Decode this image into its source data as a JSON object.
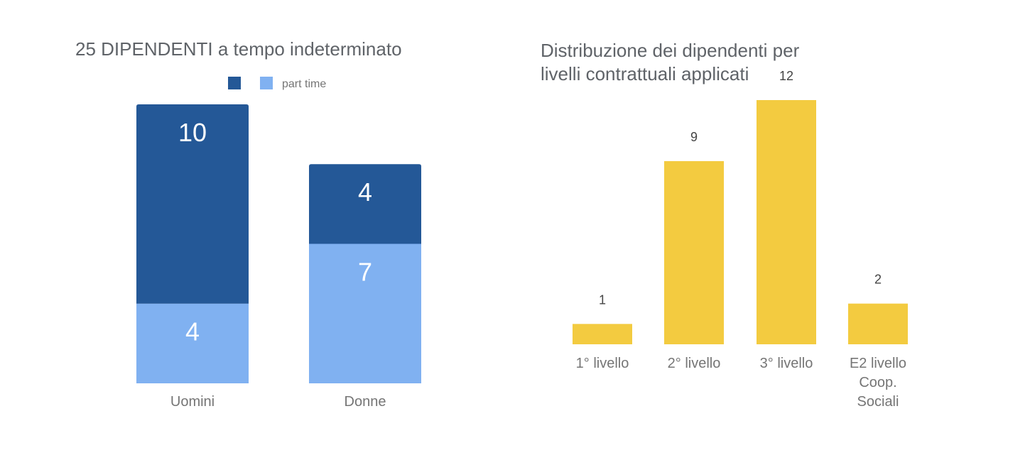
{
  "chart_data": [
    {
      "type": "bar",
      "stacked": true,
      "title": "25 DIPENDENTI a tempo indeterminato",
      "categories": [
        "Uomini",
        "Donne"
      ],
      "series": [
        {
          "name": "part time",
          "values": [
            4,
            7
          ],
          "color": "#80b1f1"
        },
        {
          "name": "",
          "values": [
            10,
            4
          ],
          "color": "#245897"
        }
      ],
      "legend_position": "top",
      "ylim": [
        0,
        14
      ],
      "grid": false
    },
    {
      "type": "bar",
      "title_lines": [
        "Distribuzione dei dipendenti per",
        "livelli contrattuali applicati"
      ],
      "categories": [
        [
          "1° livello"
        ],
        [
          "2° livello"
        ],
        [
          "3° livello"
        ],
        [
          "E2 livello",
          "Coop.",
          "Sociali"
        ]
      ],
      "values": [
        1,
        9,
        12,
        2
      ],
      "color": "#f3cb40",
      "ylim": [
        0,
        12
      ],
      "grid": false
    }
  ]
}
